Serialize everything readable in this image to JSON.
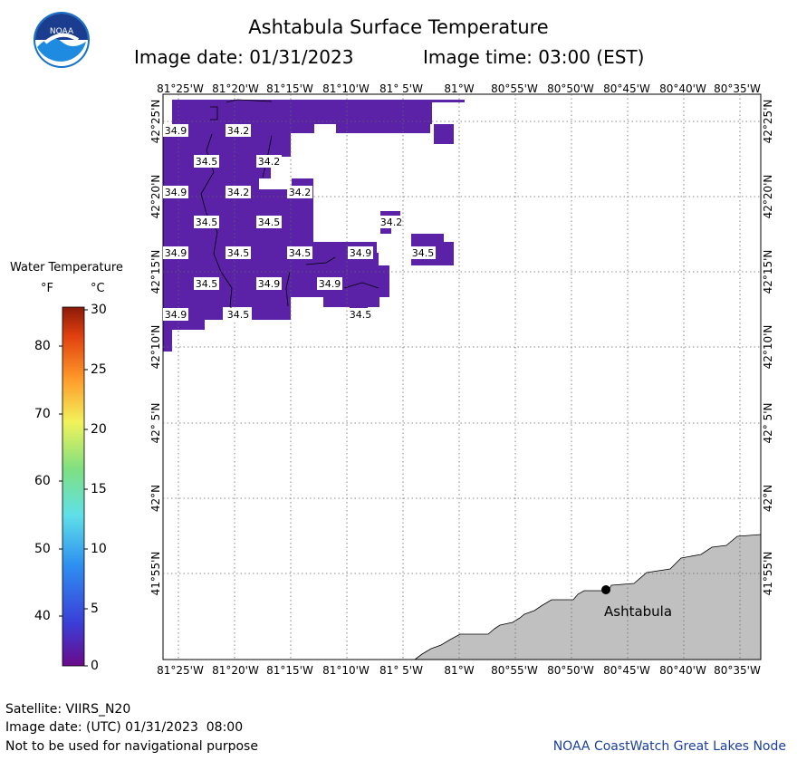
{
  "header": {
    "title": "Ashtabula Surface Temperature",
    "image_date": "Image date: 01/31/2023",
    "image_time": "Image time: 03:00 (EST)"
  },
  "logo": {
    "text": "NOAA",
    "icon": "noaa-logo-icon"
  },
  "map": {
    "lon_labels": [
      "81°25'W",
      "81°20'W",
      "81°15'W",
      "81°10'W",
      "81° 5'W",
      "81°W",
      "80°55'W",
      "80°50'W",
      "80°45'W",
      "80°40'W",
      "80°35'W"
    ],
    "lat_labels": [
      "42°25'N",
      "42°20'N",
      "42°15'N",
      "42°10'N",
      "42° 5'N",
      "42°N",
      "41°55'N"
    ],
    "city": "Ashtabula",
    "water_color": "#5b22a8",
    "land_color": "#c0c0c0",
    "temp_labels": [
      "34.9",
      "34.2",
      "34.5",
      "34.2",
      "34.9",
      "34.2",
      "34.2",
      "34.5",
      "34.5",
      "34.2",
      "34.9",
      "34.5",
      "34.5",
      "34.9",
      "34.5",
      "34.5",
      "34.9",
      "34.9",
      "34.9",
      "34.5",
      "34.5"
    ]
  },
  "legend": {
    "title": "Water Temperature",
    "unit_f": "°F",
    "unit_c": "°C",
    "f_ticks": [
      "80",
      "70",
      "60",
      "50",
      "40"
    ],
    "c_ticks": [
      "30",
      "25",
      "20",
      "15",
      "10",
      "5",
      "0"
    ]
  },
  "footer": {
    "satellite": "Satellite: VIIRS_N20",
    "utc_date": "Image date: (UTC) 01/31/2023  08:00",
    "disclaimer": "Not to be used for navigational purpose",
    "credit": "NOAA CoastWatch Great Lakes Node"
  }
}
